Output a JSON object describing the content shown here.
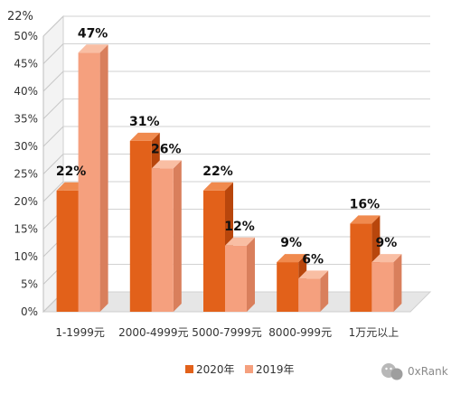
{
  "chart_data": {
    "type": "bar",
    "title": "",
    "xlabel": "",
    "ylabel": "",
    "ylim": [
      0,
      50
    ],
    "y_tick_labels": [
      "0%",
      "5%",
      "10%",
      "15%",
      "20%",
      "25%",
      "30%",
      "35%",
      "40%",
      "45%",
      "50%"
    ],
    "top_corner_label": "22%",
    "categories": [
      "1-1999元",
      "2000-4999元",
      "5000-7999元",
      "8000-999元",
      "1万元以上"
    ],
    "series": [
      {
        "name": "2020年",
        "values": [
          22,
          31,
          22,
          9,
          16
        ],
        "labels": [
          "22%",
          "31%",
          "22%",
          "9%",
          "16%"
        ],
        "color": "#E2611A",
        "side_color": "#B8460C",
        "top_color": "#F08A4E"
      },
      {
        "name": "2019年",
        "values": [
          47,
          26,
          12,
          6,
          9
        ],
        "labels": [
          "47%",
          "26%",
          "12%",
          "6%",
          "9%"
        ],
        "color": "#F5A07E",
        "side_color": "#D97F5C",
        "top_color": "#F9BEA3"
      }
    ],
    "grid": true,
    "legend_position": "bottom",
    "style": "3d-clustered-column"
  },
  "watermark": {
    "text": "0xRank",
    "icon": "wechat-icon"
  }
}
